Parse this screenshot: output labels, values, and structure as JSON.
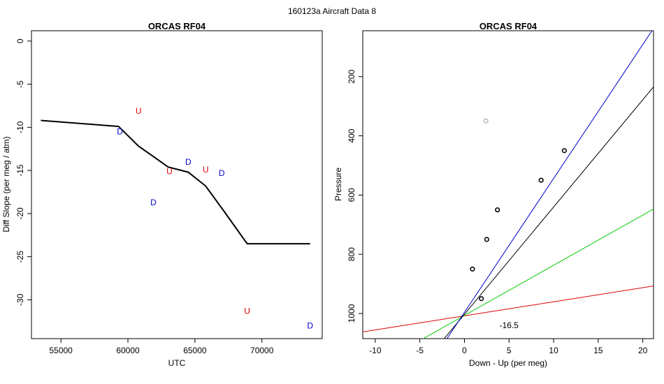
{
  "page_title": "160123a   Aircraft Data 8",
  "chart_data": [
    {
      "type": "scatter",
      "title": "ORCAS RF04",
      "xlabel": "UTC",
      "ylabel": "Diff Slope (per meg / atm)",
      "xlim": [
        52800,
        74500
      ],
      "ylim": [
        -34.5,
        1.2
      ],
      "x_ticks": [
        55000,
        60000,
        65000,
        70000
      ],
      "y_ticks": [
        0,
        -5,
        -10,
        -15,
        -20,
        -25,
        -30
      ],
      "line": {
        "color": "#000000",
        "points": [
          [
            53500,
            -9.2
          ],
          [
            59300,
            -9.9
          ],
          [
            60800,
            -12.2
          ],
          [
            62000,
            -13.5
          ],
          [
            63000,
            -14.6
          ],
          [
            64500,
            -15.2
          ],
          [
            65800,
            -16.8
          ],
          [
            67200,
            -19.8
          ],
          [
            68900,
            -23.5
          ],
          [
            73600,
            -23.5
          ]
        ]
      },
      "series": [
        {
          "name": "U",
          "color": "#dd0000",
          "points": [
            [
              60800,
              -8.1
            ],
            [
              63100,
              -15.1
            ],
            [
              65800,
              -14.9
            ],
            [
              68900,
              -31.3
            ]
          ]
        },
        {
          "name": "D",
          "color": "#0000cc",
          "points": [
            [
              59400,
              -10.5
            ],
            [
              61900,
              -18.7
            ],
            [
              64500,
              -14.0
            ],
            [
              67000,
              -15.3
            ],
            [
              73600,
              -33.0
            ]
          ]
        }
      ]
    },
    {
      "type": "scatter",
      "title": "ORCAS RF04",
      "xlabel": "Down - Up (per meg)",
      "ylabel": "Pressure",
      "xlim": [
        -11.4,
        21.2
      ],
      "ylim": [
        1085,
        45
      ],
      "y_reversed": true,
      "x_ticks": [
        -10,
        -5,
        0,
        5,
        10,
        15,
        20
      ],
      "y_ticks": [
        200,
        400,
        600,
        800,
        1000
      ],
      "annotation": "-16.5",
      "annotation_pos": [
        5.0,
        1040
      ],
      "points": [
        {
          "x": 2.4,
          "y": 350,
          "color": "#bbbbbb"
        },
        {
          "x": 11.2,
          "y": 450,
          "color": "#000000"
        },
        {
          "x": 8.6,
          "y": 550,
          "color": "#000000"
        },
        {
          "x": 3.7,
          "y": 650,
          "color": "#000000"
        },
        {
          "x": 2.5,
          "y": 750,
          "color": "#000000"
        },
        {
          "x": 0.9,
          "y": 850,
          "color": "#000000"
        },
        {
          "x": 1.9,
          "y": 950,
          "color": "#000000"
        }
      ],
      "lines": [
        {
          "color": "#dd0000",
          "x0": -0.4,
          "y0": 1010,
          "slope": 0.21
        },
        {
          "color": "#00cc00",
          "x0": -0.2,
          "y0": 1010,
          "slope": 0.059
        },
        {
          "color": "#000000",
          "x0": -0.2,
          "y0": 1010,
          "slope": 0.0276
        },
        {
          "color": "#0000cc",
          "x0": -0.3,
          "y0": 1010,
          "slope": 0.0221
        }
      ]
    }
  ]
}
